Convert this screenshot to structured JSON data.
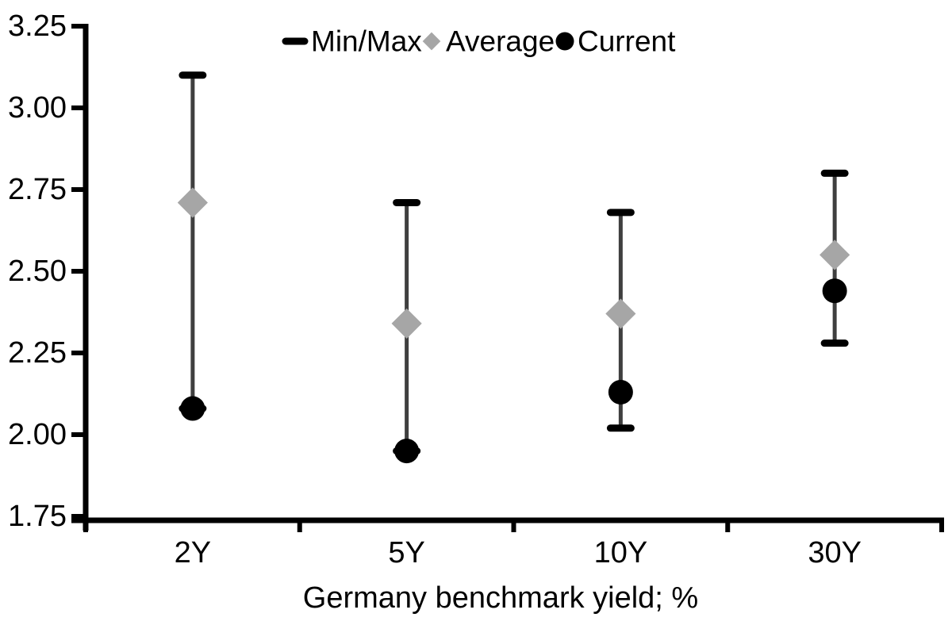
{
  "chart_data": {
    "type": "scatter",
    "subtype": "min-max-range",
    "title": "",
    "xlabel": "Germany benchmark yield; %",
    "ylabel": "",
    "categories": [
      "2Y",
      "5Y",
      "10Y",
      "30Y"
    ],
    "series": [
      {
        "name": "Min/Max",
        "marker": "dash",
        "color": "#000000",
        "min": [
          2.08,
          1.95,
          2.02,
          2.28
        ],
        "max": [
          3.1,
          2.71,
          2.68,
          2.8
        ]
      },
      {
        "name": "Average",
        "marker": "diamond",
        "color": "#a6a6a6",
        "values": [
          2.71,
          2.34,
          2.37,
          2.55
        ]
      },
      {
        "name": "Current",
        "marker": "circle",
        "color": "#000000",
        "values": [
          2.08,
          1.95,
          2.13,
          2.44
        ]
      }
    ],
    "ylim": [
      1.75,
      3.25
    ],
    "ytick_labels": [
      "3.25",
      "3.00",
      "2.75",
      "2.50",
      "2.25",
      "2.00",
      "1.75"
    ],
    "yticks": [
      3.25,
      3.0,
      2.75,
      2.5,
      2.25,
      2.0,
      1.75
    ],
    "legend_position": "top",
    "grid": false,
    "colors": {
      "axis": "#000000",
      "range_line": "#3f3f3f",
      "cap": "#000000",
      "average": "#a6a6a6",
      "current": "#000000",
      "text": "#000000",
      "background": "#ffffff"
    }
  }
}
